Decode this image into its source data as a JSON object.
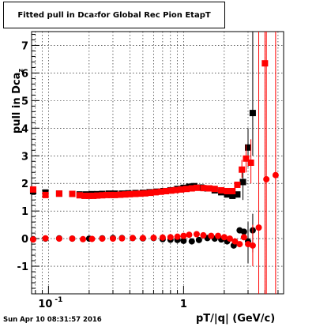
{
  "title": {
    "prefix": "Fitted pull in Dca",
    "subscript": "z",
    "suffix": " for Global Rec Pion EtapT"
  },
  "ylabel": {
    "prefix": "pull in Dca",
    "subscript": "z"
  },
  "xlabel": "pT/|q| (GeV/c)",
  "timestamp": "Sun Apr 10 08:31:57 2016",
  "colors": {
    "black_series": "#000000",
    "red_series": "#ff0000"
  },
  "chart_data": {
    "type": "scatter",
    "xscale": "log",
    "xlim": [
      0.075,
      5.5
    ],
    "ylim": [
      -2,
      7.5
    ],
    "grid": true,
    "legend": "none",
    "x_tick_labels": [
      {
        "v": 0.1,
        "base": "10",
        "exp": "-1"
      },
      {
        "v": 1,
        "base": "1",
        "exp": ""
      }
    ],
    "y_tick_labels": [
      "-1",
      "0",
      "1",
      "2",
      "3",
      "4",
      "5",
      "6",
      "7"
    ],
    "y_ticks": [
      -1,
      0,
      1,
      2,
      3,
      4,
      5,
      6,
      7
    ],
    "series": [
      {
        "marker": "square",
        "color": "#000000",
        "points": [
          [
            0.077,
            1.72
          ],
          [
            0.095,
            1.67
          ],
          [
            0.12,
            1.63
          ],
          [
            0.15,
            1.62
          ],
          [
            0.17,
            1.6
          ],
          [
            0.19,
            1.6
          ],
          [
            0.21,
            1.61
          ],
          [
            0.23,
            1.61
          ],
          [
            0.25,
            1.62
          ],
          [
            0.28,
            1.63
          ],
          [
            0.31,
            1.63
          ],
          [
            0.35,
            1.63
          ],
          [
            0.39,
            1.64
          ],
          [
            0.44,
            1.65
          ],
          [
            0.5,
            1.66
          ],
          [
            0.56,
            1.68
          ],
          [
            0.63,
            1.7
          ],
          [
            0.71,
            1.72
          ],
          [
            0.8,
            1.75
          ],
          [
            0.9,
            1.8
          ],
          [
            1.0,
            1.84
          ],
          [
            1.1,
            1.88
          ],
          [
            1.2,
            1.9
          ],
          [
            1.35,
            1.85
          ],
          [
            1.5,
            1.82
          ],
          [
            1.7,
            1.75
          ],
          [
            1.9,
            1.68
          ],
          [
            2.1,
            1.6
          ],
          [
            2.3,
            1.55
          ],
          [
            2.5,
            1.6
          ],
          [
            2.75,
            2.05
          ],
          [
            3.0,
            3.3
          ],
          [
            3.25,
            4.55
          ]
        ],
        "circles": [
          [
            0.077,
            -0.02
          ],
          [
            0.095,
            0.0
          ],
          [
            0.12,
            0.01
          ],
          [
            0.15,
            0.0
          ],
          [
            0.2,
            0.0
          ],
          [
            0.25,
            0.01
          ],
          [
            0.3,
            0.02
          ],
          [
            0.35,
            0.02
          ],
          [
            0.42,
            0.02
          ],
          [
            0.5,
            0.01
          ],
          [
            0.6,
            0.02
          ],
          [
            0.7,
            -0.02
          ],
          [
            0.8,
            -0.04
          ],
          [
            0.9,
            -0.05
          ],
          [
            1.0,
            -0.08
          ],
          [
            1.15,
            -0.1
          ],
          [
            1.3,
            -0.05
          ],
          [
            1.5,
            0.02
          ],
          [
            1.7,
            0.0
          ],
          [
            1.9,
            -0.03
          ],
          [
            2.1,
            -0.1
          ],
          [
            2.35,
            -0.25
          ],
          [
            2.6,
            0.3
          ],
          [
            2.8,
            0.25
          ],
          [
            3.0,
            -0.1
          ],
          [
            3.25,
            0.3
          ]
        ],
        "error_bars": [
          [
            2.75,
            1.4,
            2.6
          ],
          [
            3.0,
            2.6,
            4.0
          ],
          [
            3.25,
            3.0,
            7.5
          ],
          [
            3.0,
            -0.9,
            0.6
          ],
          [
            3.25,
            -0.5,
            0.9
          ]
        ]
      },
      {
        "marker": "square",
        "color": "#ff0000",
        "points": [
          [
            0.077,
            1.78
          ],
          [
            0.095,
            1.58
          ],
          [
            0.12,
            1.63
          ],
          [
            0.15,
            1.62
          ],
          [
            0.17,
            1.57
          ],
          [
            0.185,
            1.55
          ],
          [
            0.2,
            1.55
          ],
          [
            0.215,
            1.55
          ],
          [
            0.23,
            1.56
          ],
          [
            0.25,
            1.57
          ],
          [
            0.27,
            1.58
          ],
          [
            0.29,
            1.58
          ],
          [
            0.31,
            1.58
          ],
          [
            0.34,
            1.59
          ],
          [
            0.37,
            1.6
          ],
          [
            0.4,
            1.61
          ],
          [
            0.44,
            1.62
          ],
          [
            0.48,
            1.63
          ],
          [
            0.52,
            1.64
          ],
          [
            0.57,
            1.66
          ],
          [
            0.62,
            1.68
          ],
          [
            0.68,
            1.7
          ],
          [
            0.74,
            1.72
          ],
          [
            0.81,
            1.74
          ],
          [
            0.88,
            1.76
          ],
          [
            0.96,
            1.78
          ],
          [
            1.05,
            1.8
          ],
          [
            1.15,
            1.82
          ],
          [
            1.25,
            1.84
          ],
          [
            1.4,
            1.83
          ],
          [
            1.55,
            1.82
          ],
          [
            1.7,
            1.8
          ],
          [
            1.9,
            1.75
          ],
          [
            2.1,
            1.72
          ],
          [
            2.3,
            1.72
          ],
          [
            2.5,
            1.95
          ],
          [
            2.7,
            2.5
          ],
          [
            2.9,
            2.9
          ],
          [
            3.15,
            2.75
          ],
          [
            4.0,
            6.35
          ]
        ],
        "circles": [
          [
            0.077,
            -0.03
          ],
          [
            0.095,
            0.01
          ],
          [
            0.12,
            0.0
          ],
          [
            0.15,
            0.0
          ],
          [
            0.18,
            -0.02
          ],
          [
            0.21,
            -0.01
          ],
          [
            0.25,
            0.0
          ],
          [
            0.3,
            0.0
          ],
          [
            0.35,
            0.01
          ],
          [
            0.42,
            0.02
          ],
          [
            0.5,
            0.02
          ],
          [
            0.6,
            0.03
          ],
          [
            0.7,
            0.04
          ],
          [
            0.8,
            0.05
          ],
          [
            0.9,
            0.07
          ],
          [
            1.0,
            0.1
          ],
          [
            1.1,
            0.14
          ],
          [
            1.25,
            0.16
          ],
          [
            1.4,
            0.12
          ],
          [
            1.6,
            0.1
          ],
          [
            1.8,
            0.1
          ],
          [
            2.0,
            0.05
          ],
          [
            2.2,
            0.0
          ],
          [
            2.4,
            -0.1
          ],
          [
            2.6,
            -0.2
          ],
          [
            2.8,
            0.05
          ],
          [
            3.0,
            -0.2
          ],
          [
            3.25,
            -0.25
          ],
          [
            3.6,
            0.4
          ],
          [
            4.1,
            2.15
          ],
          [
            4.8,
            2.3
          ]
        ],
        "error_bars": [
          [
            2.7,
            2.2,
            2.85
          ],
          [
            2.9,
            2.4,
            3.4
          ],
          [
            3.15,
            2.0,
            3.6
          ],
          [
            4.0,
            -2.0,
            7.5
          ],
          [
            3.6,
            -2.0,
            7.5
          ],
          [
            4.1,
            -2.0,
            7.5
          ],
          [
            4.8,
            -2.0,
            7.5
          ],
          [
            3.25,
            -1.0,
            0.5
          ]
        ]
      }
    ]
  }
}
